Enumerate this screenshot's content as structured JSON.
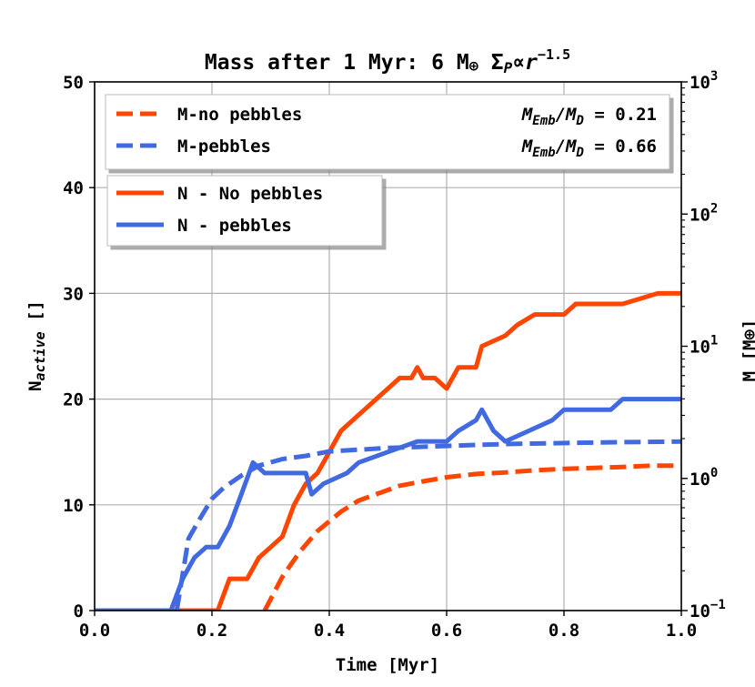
{
  "chart_data": {
    "type": "line",
    "title": "Mass after 1 Myr: 6 M⊕ ΣP ∝ r^-1.5",
    "title_parts": {
      "main": "Mass after 1 Myr: 6 M",
      "earth_symbol": "⊕",
      "sigma": "Σ",
      "sigma_sub": "P",
      "propto": "∝",
      "r": "r",
      "exponent": "−1.5"
    },
    "xlabel": "Time [Myr]",
    "ylabel": "N",
    "ylabel_sub": "active",
    "ylabel_unit": "[]",
    "y2label": "M [M⊕]",
    "xlim": [
      0.0,
      1.0
    ],
    "ylim": [
      0,
      50
    ],
    "y2lim_log10": [
      -1,
      3
    ],
    "x_ticks": [
      {
        "value": 0.0,
        "label": "0.0"
      },
      {
        "value": 0.2,
        "label": "0.2"
      },
      {
        "value": 0.4,
        "label": "0.4"
      },
      {
        "value": 0.6,
        "label": "0.6"
      },
      {
        "value": 0.8,
        "label": "0.8"
      },
      {
        "value": 1.0,
        "label": "1.0"
      }
    ],
    "y_ticks": [
      {
        "value": 0,
        "label": "0"
      },
      {
        "value": 10,
        "label": "10"
      },
      {
        "value": 20,
        "label": "20"
      },
      {
        "value": 30,
        "label": "30"
      },
      {
        "value": 40,
        "label": "40"
      },
      {
        "value": 50,
        "label": "50"
      }
    ],
    "y2_ticks": [
      {
        "exp": -1,
        "base": "10",
        "sup": "−1"
      },
      {
        "exp": 0,
        "base": "10",
        "sup": "0"
      },
      {
        "exp": 1,
        "base": "10",
        "sup": "1"
      },
      {
        "exp": 2,
        "base": "10",
        "sup": "2"
      },
      {
        "exp": 3,
        "base": "10",
        "sup": "3"
      }
    ],
    "grid": true,
    "legends": [
      {
        "placement": "top-left",
        "entries": [
          {
            "label": "M-no pebbles",
            "color": "#ff4500",
            "dash": true,
            "ratio_label": "M",
            "ratio_sub1": "Emb",
            "ratio_sub2": "D",
            "ratio_value": " = 0.21"
          },
          {
            "label": "M-pebbles",
            "color": "#4169e1",
            "dash": true,
            "ratio_label": "M",
            "ratio_sub1": "Emb",
            "ratio_sub2": "D",
            "ratio_value": " = 0.66"
          }
        ]
      },
      {
        "placement": "upper-left",
        "entries": [
          {
            "label": "N - No pebbles",
            "color": "#ff4500",
            "dash": false
          },
          {
            "label": "N - pebbles",
            "color": "#4169e1",
            "dash": false
          }
        ]
      }
    ],
    "series": [
      {
        "name": "N - No pebbles",
        "axis": "left",
        "style": "step",
        "color": "#ff4500",
        "points": [
          [
            0.0,
            0
          ],
          [
            0.21,
            0
          ],
          [
            0.23,
            3
          ],
          [
            0.26,
            3
          ],
          [
            0.28,
            5
          ],
          [
            0.3,
            6
          ],
          [
            0.32,
            7
          ],
          [
            0.34,
            10
          ],
          [
            0.36,
            12
          ],
          [
            0.38,
            13
          ],
          [
            0.4,
            15
          ],
          [
            0.42,
            17
          ],
          [
            0.44,
            18
          ],
          [
            0.46,
            19
          ],
          [
            0.48,
            20
          ],
          [
            0.5,
            21
          ],
          [
            0.52,
            22
          ],
          [
            0.54,
            22
          ],
          [
            0.55,
            23
          ],
          [
            0.56,
            22
          ],
          [
            0.58,
            22
          ],
          [
            0.6,
            21
          ],
          [
            0.62,
            23
          ],
          [
            0.65,
            23
          ],
          [
            0.66,
            25
          ],
          [
            0.7,
            26
          ],
          [
            0.72,
            27
          ],
          [
            0.75,
            28
          ],
          [
            0.8,
            28
          ],
          [
            0.82,
            29
          ],
          [
            0.9,
            29
          ],
          [
            0.96,
            30
          ],
          [
            1.0,
            30
          ]
        ]
      },
      {
        "name": "N - pebbles",
        "axis": "left",
        "style": "step",
        "color": "#4169e1",
        "points": [
          [
            0.0,
            0
          ],
          [
            0.13,
            0
          ],
          [
            0.15,
            3
          ],
          [
            0.17,
            5
          ],
          [
            0.19,
            6
          ],
          [
            0.21,
            6
          ],
          [
            0.23,
            8
          ],
          [
            0.25,
            11
          ],
          [
            0.27,
            14
          ],
          [
            0.29,
            13
          ],
          [
            0.3,
            13
          ],
          [
            0.34,
            13
          ],
          [
            0.36,
            13
          ],
          [
            0.37,
            11
          ],
          [
            0.39,
            12
          ],
          [
            0.43,
            13
          ],
          [
            0.45,
            14
          ],
          [
            0.5,
            15
          ],
          [
            0.55,
            16
          ],
          [
            0.6,
            16
          ],
          [
            0.62,
            17
          ],
          [
            0.65,
            18
          ],
          [
            0.66,
            19
          ],
          [
            0.68,
            17
          ],
          [
            0.7,
            16
          ],
          [
            0.74,
            17
          ],
          [
            0.78,
            18
          ],
          [
            0.8,
            19
          ],
          [
            0.85,
            19
          ],
          [
            0.88,
            19
          ],
          [
            0.9,
            20
          ],
          [
            1.0,
            20
          ]
        ]
      },
      {
        "name": "M-no pebbles",
        "axis": "right",
        "style": "dashed",
        "color": "#ff4500",
        "points": [
          [
            0.29,
            0.1
          ],
          [
            0.32,
            0.18
          ],
          [
            0.35,
            0.28
          ],
          [
            0.38,
            0.4
          ],
          [
            0.42,
            0.56
          ],
          [
            0.45,
            0.68
          ],
          [
            0.48,
            0.76
          ],
          [
            0.52,
            0.88
          ],
          [
            0.56,
            0.95
          ],
          [
            0.6,
            1.02
          ],
          [
            0.65,
            1.08
          ],
          [
            0.7,
            1.11
          ],
          [
            0.75,
            1.15
          ],
          [
            0.8,
            1.18
          ],
          [
            0.85,
            1.2
          ],
          [
            0.9,
            1.22
          ],
          [
            0.95,
            1.25
          ],
          [
            1.0,
            1.25
          ]
        ]
      },
      {
        "name": "M-pebbles",
        "axis": "right",
        "style": "dashed",
        "color": "#4169e1",
        "points": [
          [
            0.14,
            0.1
          ],
          [
            0.16,
            0.35
          ],
          [
            0.18,
            0.5
          ],
          [
            0.2,
            0.7
          ],
          [
            0.22,
            0.85
          ],
          [
            0.25,
            1.05
          ],
          [
            0.28,
            1.25
          ],
          [
            0.32,
            1.4
          ],
          [
            0.36,
            1.48
          ],
          [
            0.4,
            1.6
          ],
          [
            0.45,
            1.65
          ],
          [
            0.5,
            1.7
          ],
          [
            0.55,
            1.73
          ],
          [
            0.6,
            1.76
          ],
          [
            0.65,
            1.79
          ],
          [
            0.7,
            1.82
          ],
          [
            0.8,
            1.85
          ],
          [
            0.9,
            1.88
          ],
          [
            1.0,
            1.9
          ]
        ]
      }
    ]
  }
}
